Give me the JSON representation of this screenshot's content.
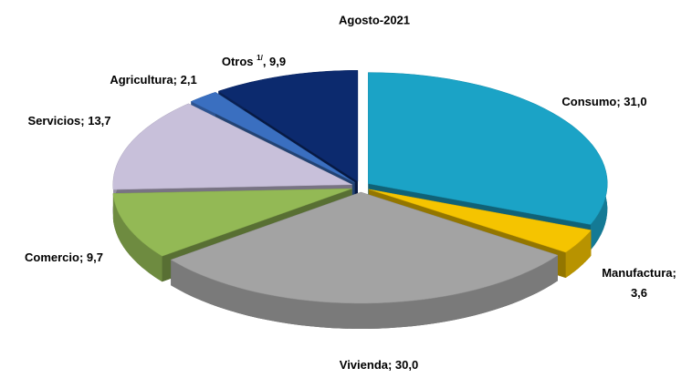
{
  "chart_data": {
    "type": "pie3d",
    "title": "Agosto-2021",
    "values": [
      31.0,
      3.6,
      30.0,
      9.7,
      13.7,
      2.1,
      9.9
    ],
    "value_labels": [
      "Consumo; 31,0",
      "Manufactura; 3,6",
      "Vivienda; 30,0",
      "Comercio; 9,7",
      "Servicios; 13,7",
      "Agricultura; 2,1",
      "Otros 1/, 9,9"
    ],
    "colors": [
      "#1ba3c6",
      "#f5c400",
      "#a3a3a3",
      "#93b955",
      "#c8c0da",
      "#3a6fc0",
      "#0c2a6e"
    ]
  }
}
